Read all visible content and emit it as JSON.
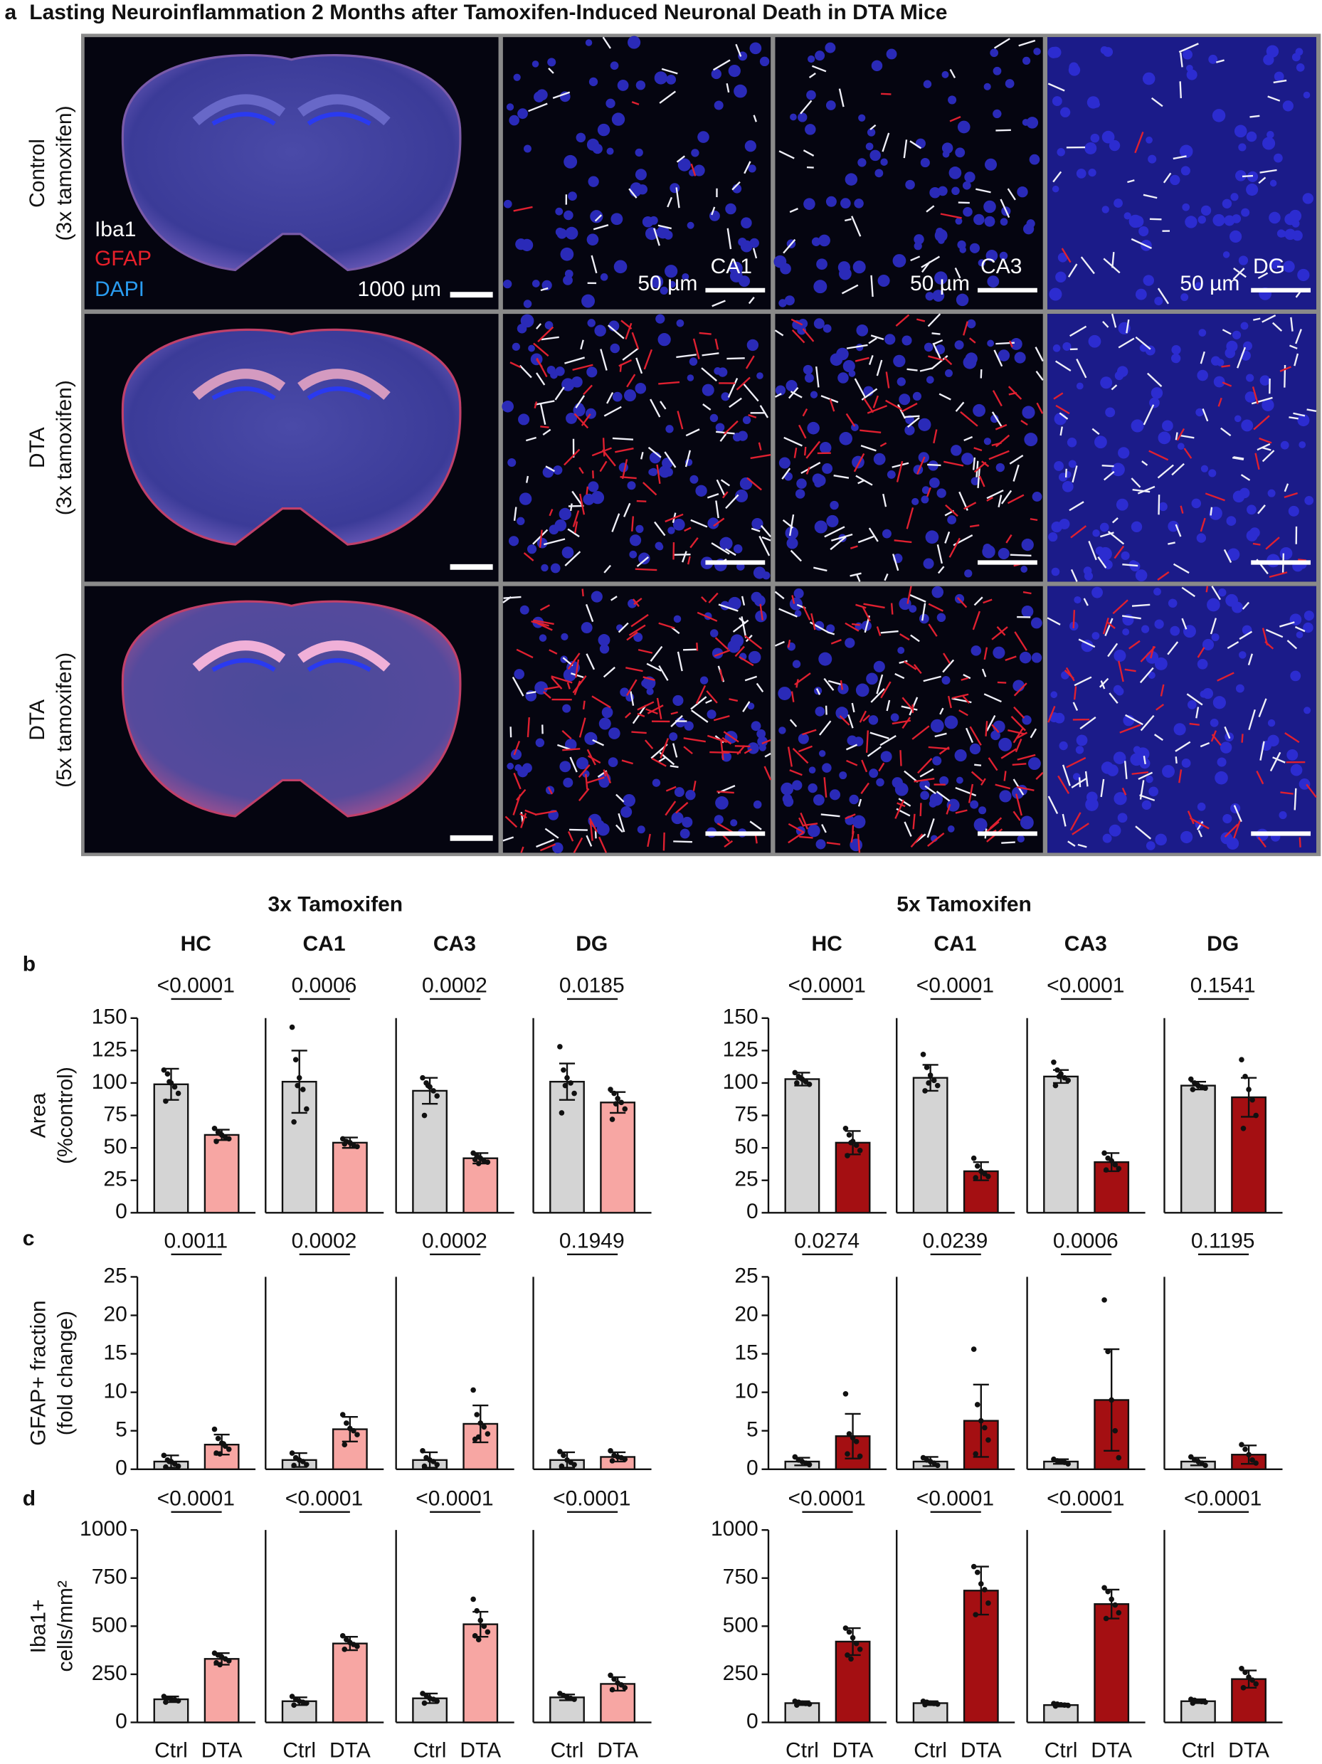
{
  "panel_a": {
    "label": "a",
    "title": "Lasting Neuroinflammation 2 Months after Tamoxifen-Induced Neuronal Death in DTA Mice",
    "rows": [
      [
        "Control",
        "(3x tamoxifen)"
      ],
      [
        "DTA",
        "(3x tamoxifen)"
      ],
      [
        "DTA",
        "(5x tamoxifen)"
      ]
    ],
    "legend": [
      "Iba1",
      "GFAP",
      "DAPI"
    ],
    "columns": [
      "CA1",
      "CA3",
      "DG"
    ],
    "scale_bars": [
      "1000 µm",
      "50 µm",
      "50 µm",
      "50 µm"
    ]
  },
  "figure": {
    "groups": [
      "3x Tamoxifen",
      "5x Tamoxifen"
    ],
    "panel_labels": [
      "b",
      "c",
      "d"
    ]
  },
  "chart_data": [
    {
      "type": "bar",
      "title": "HC",
      "ylabel": [
        "Area",
        "(%control)"
      ],
      "categories": [
        null,
        null
      ],
      "values": [
        99,
        60
      ],
      "errors": [
        12,
        4
      ],
      "points": [
        [
          110,
          107,
          100,
          97,
          92,
          86,
          101
        ],
        [
          65,
          62,
          60,
          58,
          57,
          55,
          61
        ]
      ],
      "colors": [
        "#d4d4d4",
        "#f7a6a3"
      ],
      "ylim": [
        0,
        150
      ],
      "yticks": [
        0,
        25,
        50,
        75,
        100,
        125,
        150
      ],
      "p_value": "<0.0001"
    },
    {
      "type": "bar",
      "title": "CA1",
      "categories": [
        null,
        null
      ],
      "values": [
        101,
        54
      ],
      "errors": [
        24,
        4
      ],
      "points": [
        [
          143,
          118,
          104,
          95,
          80,
          70,
          98
        ],
        [
          57,
          55,
          54,
          52,
          51,
          53
        ]
      ],
      "colors": [
        "#d4d4d4",
        "#f7a6a3"
      ],
      "ylim": [
        0,
        150
      ],
      "p_value": "0.0006"
    },
    {
      "type": "bar",
      "title": "CA3",
      "categories": [
        null,
        null
      ],
      "values": [
        94,
        42
      ],
      "errors": [
        10,
        4
      ],
      "points": [
        [
          104,
          100,
          97,
          94,
          90,
          75,
          98
        ],
        [
          46,
          44,
          42,
          40,
          39,
          41,
          38
        ]
      ],
      "colors": [
        "#d4d4d4",
        "#f7a6a3"
      ],
      "ylim": [
        0,
        150
      ],
      "p_value": "0.0002"
    },
    {
      "type": "bar",
      "title": "DG",
      "categories": [
        null,
        null
      ],
      "values": [
        101,
        85
      ],
      "errors": [
        14,
        8
      ],
      "points": [
        [
          128,
          110,
          104,
          100,
          92,
          77,
          98
        ],
        [
          95,
          92,
          88,
          85,
          80,
          72,
          84
        ]
      ],
      "colors": [
        "#d4d4d4",
        "#f7a6a3"
      ],
      "ylim": [
        0,
        150
      ],
      "p_value": "0.0185"
    },
    {
      "type": "bar",
      "title": "HC",
      "categories": [
        null,
        null
      ],
      "values": [
        103,
        54
      ],
      "errors": [
        5,
        9
      ],
      "points": [
        [
          108,
          105,
          103,
          101,
          99,
          100,
          104
        ],
        [
          65,
          60,
          55,
          52,
          48,
          44,
          54
        ]
      ],
      "colors": [
        "#d4d4d4",
        "#a40f12"
      ],
      "ylim": [
        0,
        150
      ],
      "yticks": [
        0,
        25,
        50,
        75,
        100,
        125,
        150
      ],
      "p_value": "<0.0001"
    },
    {
      "type": "bar",
      "title": "CA1",
      "categories": [
        null,
        null
      ],
      "values": [
        104,
        32
      ],
      "errors": [
        10,
        7
      ],
      "points": [
        [
          122,
          112,
          106,
          102,
          98,
          94,
          100
        ],
        [
          42,
          36,
          32,
          30,
          28,
          27
        ]
      ],
      "colors": [
        "#d4d4d4",
        "#a40f12"
      ],
      "ylim": [
        0,
        150
      ],
      "p_value": "<0.0001"
    },
    {
      "type": "bar",
      "title": "CA3",
      "categories": [
        null,
        null
      ],
      "values": [
        105,
        39
      ],
      "errors": [
        5,
        7
      ],
      "points": [
        [
          116,
          110,
          107,
          104,
          102,
          98,
          105
        ],
        [
          46,
          42,
          40,
          37,
          34,
          33
        ]
      ],
      "colors": [
        "#d4d4d4",
        "#a40f12"
      ],
      "ylim": [
        0,
        150
      ],
      "p_value": "<0.0001"
    },
    {
      "type": "bar",
      "title": "DG",
      "categories": [
        null,
        null
      ],
      "values": [
        98,
        89
      ],
      "errors": [
        3,
        15
      ],
      "points": [
        [
          103,
          100,
          98,
          97,
          96,
          95
        ],
        [
          118,
          105,
          95,
          87,
          75,
          65
        ]
      ],
      "colors": [
        "#d4d4d4",
        "#a40f12"
      ],
      "ylim": [
        0,
        150
      ],
      "p_value": "0.1541"
    },
    {
      "type": "bar",
      "ylabel": [
        "GFAP+ fraction",
        "(fold change)"
      ],
      "categories": [
        null,
        null
      ],
      "values": [
        1.0,
        3.2
      ],
      "errors": [
        0.8,
        1.3
      ],
      "points": [
        [
          1.8,
          1.2,
          1.0,
          0.7,
          0.4,
          0.3,
          1.0
        ],
        [
          5.2,
          4.0,
          3.4,
          3.0,
          2.6,
          2.1,
          2.0,
          3.3
        ]
      ],
      "colors": [
        "#d4d4d4",
        "#f7a6a3"
      ],
      "ylim": [
        0,
        25
      ],
      "yticks": [
        0,
        5,
        10,
        15,
        20,
        25
      ],
      "p_value": "0.0011"
    },
    {
      "type": "bar",
      "categories": [
        null,
        null
      ],
      "values": [
        1.2,
        5.2
      ],
      "errors": [
        0.9,
        1.6
      ],
      "points": [
        [
          2.1,
          1.5,
          1.2,
          1.0,
          0.6,
          0.5
        ],
        [
          7.1,
          6.0,
          5.3,
          5.0,
          4.5,
          3.2
        ]
      ],
      "colors": [
        "#d4d4d4",
        "#f7a6a3"
      ],
      "ylim": [
        0,
        25
      ],
      "p_value": "0.0002"
    },
    {
      "type": "bar",
      "categories": [
        null,
        null
      ],
      "values": [
        1.2,
        5.9
      ],
      "errors": [
        1.0,
        2.4
      ],
      "points": [
        [
          2.4,
          1.5,
          1.2,
          1.0,
          0.6,
          0.4
        ],
        [
          10.3,
          7.1,
          6.0,
          5.5,
          4.6,
          3.9,
          4.2
        ]
      ],
      "colors": [
        "#d4d4d4",
        "#f7a6a3"
      ],
      "ylim": [
        0,
        25
      ],
      "p_value": "0.0002"
    },
    {
      "type": "bar",
      "categories": [
        null,
        null
      ],
      "values": [
        1.2,
        1.6
      ],
      "errors": [
        1.0,
        0.6
      ],
      "points": [
        [
          2.3,
          1.8,
          1.2,
          0.9,
          0.6,
          0.4
        ],
        [
          2.4,
          1.8,
          1.6,
          1.5,
          1.3,
          1.1
        ]
      ],
      "colors": [
        "#d4d4d4",
        "#f7a6a3"
      ],
      "ylim": [
        0,
        25
      ],
      "p_value": "0.1949"
    },
    {
      "type": "bar",
      "categories": [
        null,
        null
      ],
      "values": [
        1.0,
        4.3
      ],
      "errors": [
        0.5,
        2.9
      ],
      "points": [
        [
          1.6,
          1.2,
          1.0,
          0.8,
          0.6
        ],
        [
          9.8,
          4.6,
          4.1,
          3.6,
          1.7,
          2.0
        ]
      ],
      "colors": [
        "#d4d4d4",
        "#a40f12"
      ],
      "ylim": [
        0,
        25
      ],
      "yticks": [
        0,
        5,
        10,
        15,
        20,
        25
      ],
      "p_value": "0.0274"
    },
    {
      "type": "bar",
      "categories": [
        null,
        null
      ],
      "values": [
        1.0,
        6.3
      ],
      "errors": [
        0.6,
        4.7
      ],
      "points": [
        [
          1.5,
          1.2,
          1.0,
          0.8,
          0.5
        ],
        [
          15.6,
          8.4,
          6.3,
          5.4,
          3.8,
          2.0
        ]
      ],
      "colors": [
        "#d4d4d4",
        "#a40f12"
      ],
      "ylim": [
        0,
        25
      ],
      "p_value": "0.0239"
    },
    {
      "type": "bar",
      "categories": [
        null,
        null
      ],
      "values": [
        1.0,
        9.0
      ],
      "errors": [
        0.3,
        6.6
      ],
      "points": [
        [
          1.3,
          1.1,
          1.0,
          0.9,
          0.7
        ],
        [
          22.0,
          15.3,
          9.0,
          5.0,
          1.5
        ]
      ],
      "colors": [
        "#d4d4d4",
        "#a40f12"
      ],
      "ylim": [
        0,
        25
      ],
      "p_value": "0.0006"
    },
    {
      "type": "bar",
      "categories": [
        null,
        null
      ],
      "values": [
        1.0,
        1.9
      ],
      "errors": [
        0.5,
        1.2
      ],
      "points": [
        [
          1.6,
          1.2,
          1.0,
          0.8,
          0.5
        ],
        [
          3.2,
          2.6,
          1.9,
          1.2,
          0.8
        ]
      ],
      "colors": [
        "#d4d4d4",
        "#a40f12"
      ],
      "ylim": [
        0,
        25
      ],
      "p_value": "0.1195"
    },
    {
      "type": "bar",
      "ylabel": [
        "Iba1+",
        "cells/mm²"
      ],
      "categories": [
        "Ctrl",
        "DTA"
      ],
      "values": [
        120,
        330
      ],
      "errors": [
        15,
        30
      ],
      "points": [
        [
          135,
          125,
          120,
          118,
          112,
          105
        ],
        [
          360,
          350,
          340,
          330,
          320,
          310,
          300
        ]
      ],
      "colors": [
        "#d4d4d4",
        "#f7a6a3"
      ],
      "ylim": [
        0,
        1000
      ],
      "yticks": [
        0,
        250,
        500,
        750,
        1000
      ],
      "p_value": "<0.0001"
    },
    {
      "type": "bar",
      "categories": [
        "Ctrl",
        "DTA"
      ],
      "values": [
        110,
        410
      ],
      "errors": [
        20,
        35
      ],
      "points": [
        [
          135,
          120,
          110,
          105,
          100,
          90
        ],
        [
          450,
          430,
          415,
          405,
          395,
          380
        ]
      ],
      "colors": [
        "#d4d4d4",
        "#f7a6a3"
      ],
      "ylim": [
        0,
        1000
      ],
      "p_value": "<0.0001"
    },
    {
      "type": "bar",
      "categories": [
        "Ctrl",
        "DTA"
      ],
      "values": [
        125,
        510
      ],
      "errors": [
        25,
        65
      ],
      "points": [
        [
          150,
          140,
          125,
          120,
          110,
          100
        ],
        [
          640,
          580,
          530,
          500,
          470,
          450,
          430
        ]
      ],
      "colors": [
        "#d4d4d4",
        "#f7a6a3"
      ],
      "ylim": [
        0,
        1000
      ],
      "p_value": "<0.0001"
    },
    {
      "type": "bar",
      "categories": [
        "Ctrl",
        "DTA"
      ],
      "values": [
        130,
        200
      ],
      "errors": [
        15,
        35
      ],
      "points": [
        [
          150,
          140,
          130,
          125,
          120
        ],
        [
          245,
          225,
          205,
          195,
          180,
          170
        ]
      ],
      "colors": [
        "#d4d4d4",
        "#f7a6a3"
      ],
      "ylim": [
        0,
        1000
      ],
      "p_value": "<0.0001"
    },
    {
      "type": "bar",
      "categories": [
        "Ctrl",
        "DTA"
      ],
      "values": [
        100,
        420
      ],
      "errors": [
        10,
        70
      ],
      "points": [
        [
          110,
          105,
          100,
          98,
          95,
          90
        ],
        [
          490,
          470,
          440,
          410,
          380,
          350,
          330
        ]
      ],
      "colors": [
        "#d4d4d4",
        "#a40f12"
      ],
      "ylim": [
        0,
        1000
      ],
      "yticks": [
        0,
        250,
        500,
        750,
        1000
      ],
      "p_value": "<0.0001"
    },
    {
      "type": "bar",
      "categories": [
        "Ctrl",
        "DTA"
      ],
      "values": [
        100,
        685
      ],
      "errors": [
        10,
        125
      ],
      "points": [
        [
          110,
          105,
          100,
          98,
          95,
          92
        ],
        [
          810,
          780,
          720,
          690,
          620,
          560
        ]
      ],
      "colors": [
        "#d4d4d4",
        "#a40f12"
      ],
      "ylim": [
        0,
        1000
      ],
      "p_value": "<0.0001"
    },
    {
      "type": "bar",
      "categories": [
        "Ctrl",
        "DTA"
      ],
      "values": [
        90,
        615
      ],
      "errors": [
        8,
        75
      ],
      "points": [
        [
          98,
          95,
          92,
          90,
          88,
          85
        ],
        [
          700,
          680,
          640,
          610,
          570,
          540
        ]
      ],
      "colors": [
        "#d4d4d4",
        "#a40f12"
      ],
      "ylim": [
        0,
        1000
      ],
      "p_value": "<0.0001"
    },
    {
      "type": "bar",
      "categories": [
        "Ctrl",
        "DTA"
      ],
      "values": [
        110,
        225
      ],
      "errors": [
        10,
        45
      ],
      "points": [
        [
          120,
          115,
          110,
          108,
          105,
          100
        ],
        [
          280,
          260,
          235,
          220,
          200,
          180
        ]
      ],
      "colors": [
        "#d4d4d4",
        "#a40f12"
      ],
      "ylim": [
        0,
        1000
      ],
      "p_value": "<0.0001"
    }
  ]
}
